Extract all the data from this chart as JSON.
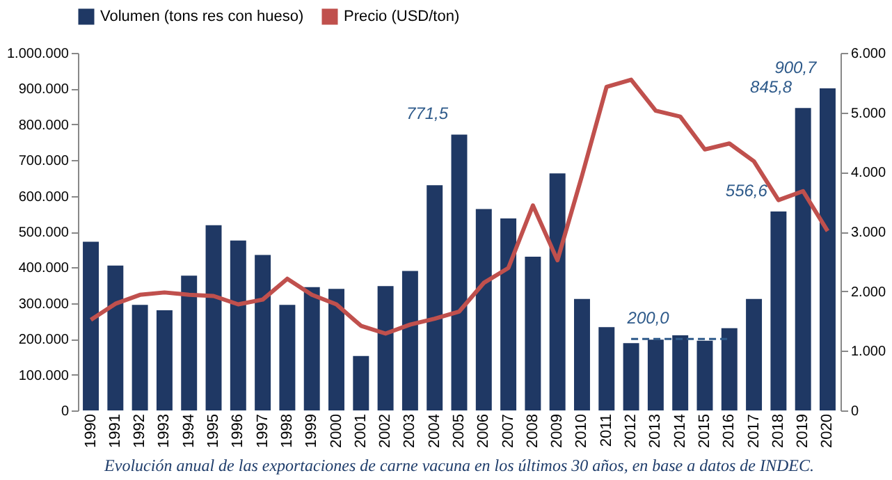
{
  "chart_data": {
    "type": "bar",
    "categories": [
      "1990",
      "1991",
      "1992",
      "1993",
      "1994",
      "1995",
      "1996",
      "1997",
      "1998",
      "1999",
      "2000",
      "2001",
      "2002",
      "2003",
      "2004",
      "2005",
      "2006",
      "2007",
      "2008",
      "2009",
      "2010",
      "2011",
      "2012",
      "2013",
      "2014",
      "2015",
      "2016",
      "2017",
      "2018",
      "2019",
      "2020"
    ],
    "series": [
      {
        "name": "Volumen (tons res con hueso)",
        "color": "#1f3864",
        "values": [
          472000,
          405000,
          295000,
          280000,
          377000,
          518000,
          475000,
          435000,
          295000,
          345000,
          340000,
          152000,
          348000,
          390000,
          630000,
          771500,
          563000,
          537000,
          430000,
          663000,
          312000,
          233000,
          188000,
          198000,
          210000,
          195000,
          230000,
          312000,
          556600,
          845800,
          900700
        ]
      },
      {
        "name": "Precio (USD/ton)",
        "type": "line",
        "axis": "y2",
        "color": "#c0504d",
        "values": [
          1520,
          1790,
          1940,
          1980,
          1940,
          1920,
          1780,
          1860,
          2210,
          1940,
          1780,
          1420,
          1290,
          1440,
          1540,
          1660,
          2140,
          2390,
          3440,
          2520,
          3940,
          5430,
          5550,
          5030,
          4930,
          4380,
          4480,
          4180,
          3530,
          3680,
          3010
        ]
      },
      {
        "type": "line",
        "line_style": "dashed",
        "color": "#2e5a8a",
        "values": [
          null,
          null,
          null,
          null,
          null,
          null,
          null,
          null,
          null,
          null,
          null,
          null,
          null,
          null,
          null,
          null,
          null,
          null,
          null,
          null,
          null,
          null,
          200000,
          200000,
          200000,
          200000,
          200000,
          null,
          null,
          null,
          null
        ]
      }
    ],
    "ylim": [
      0,
      1000000
    ],
    "yticks": [
      0,
      {
        "value": 100000,
        "label": "100.000"
      },
      {
        "value": 200000,
        "label": "200.000"
      },
      {
        "value": 300000,
        "label": "300.000"
      },
      {
        "value": 400000,
        "label": "400.000"
      },
      {
        "value": 500000,
        "label": "500.000"
      },
      {
        "value": 600000,
        "label": "600.000"
      },
      {
        "value": 700000,
        "label": "700.000"
      },
      {
        "value": 800000,
        "label": "800.000"
      },
      {
        "value": 900000,
        "label": "900.000"
      },
      {
        "value": 1000000,
        "label": "1.000.000"
      }
    ],
    "y2lim": [
      0,
      6000
    ],
    "y2ticks": [
      0,
      {
        "value": 1000,
        "label": "1.000"
      },
      {
        "value": 2000,
        "label": "2.000"
      },
      {
        "value": 3000,
        "label": "3.000"
      },
      {
        "value": 4000,
        "label": "4.000"
      },
      {
        "value": 5000,
        "label": "5.000"
      },
      {
        "value": 6000,
        "label": "6.000"
      }
    ],
    "legend": "top",
    "grid": false,
    "annotations": [
      {
        "text": "771,5",
        "x": "2005",
        "y": 771500
      },
      {
        "text": "556,6",
        "x": "2018",
        "y": 556600
      },
      {
        "text": "845,8",
        "x": "2019",
        "y": 845800
      },
      {
        "text": "900,7",
        "x": "2020",
        "y": 900700
      },
      {
        "text": "200,0",
        "x": "2014",
        "y": 200000
      },
      "Evolución anual de las exportaciones de carne vacuna en los últimos 30 años, en base a datos de INDEC."
    ]
  }
}
